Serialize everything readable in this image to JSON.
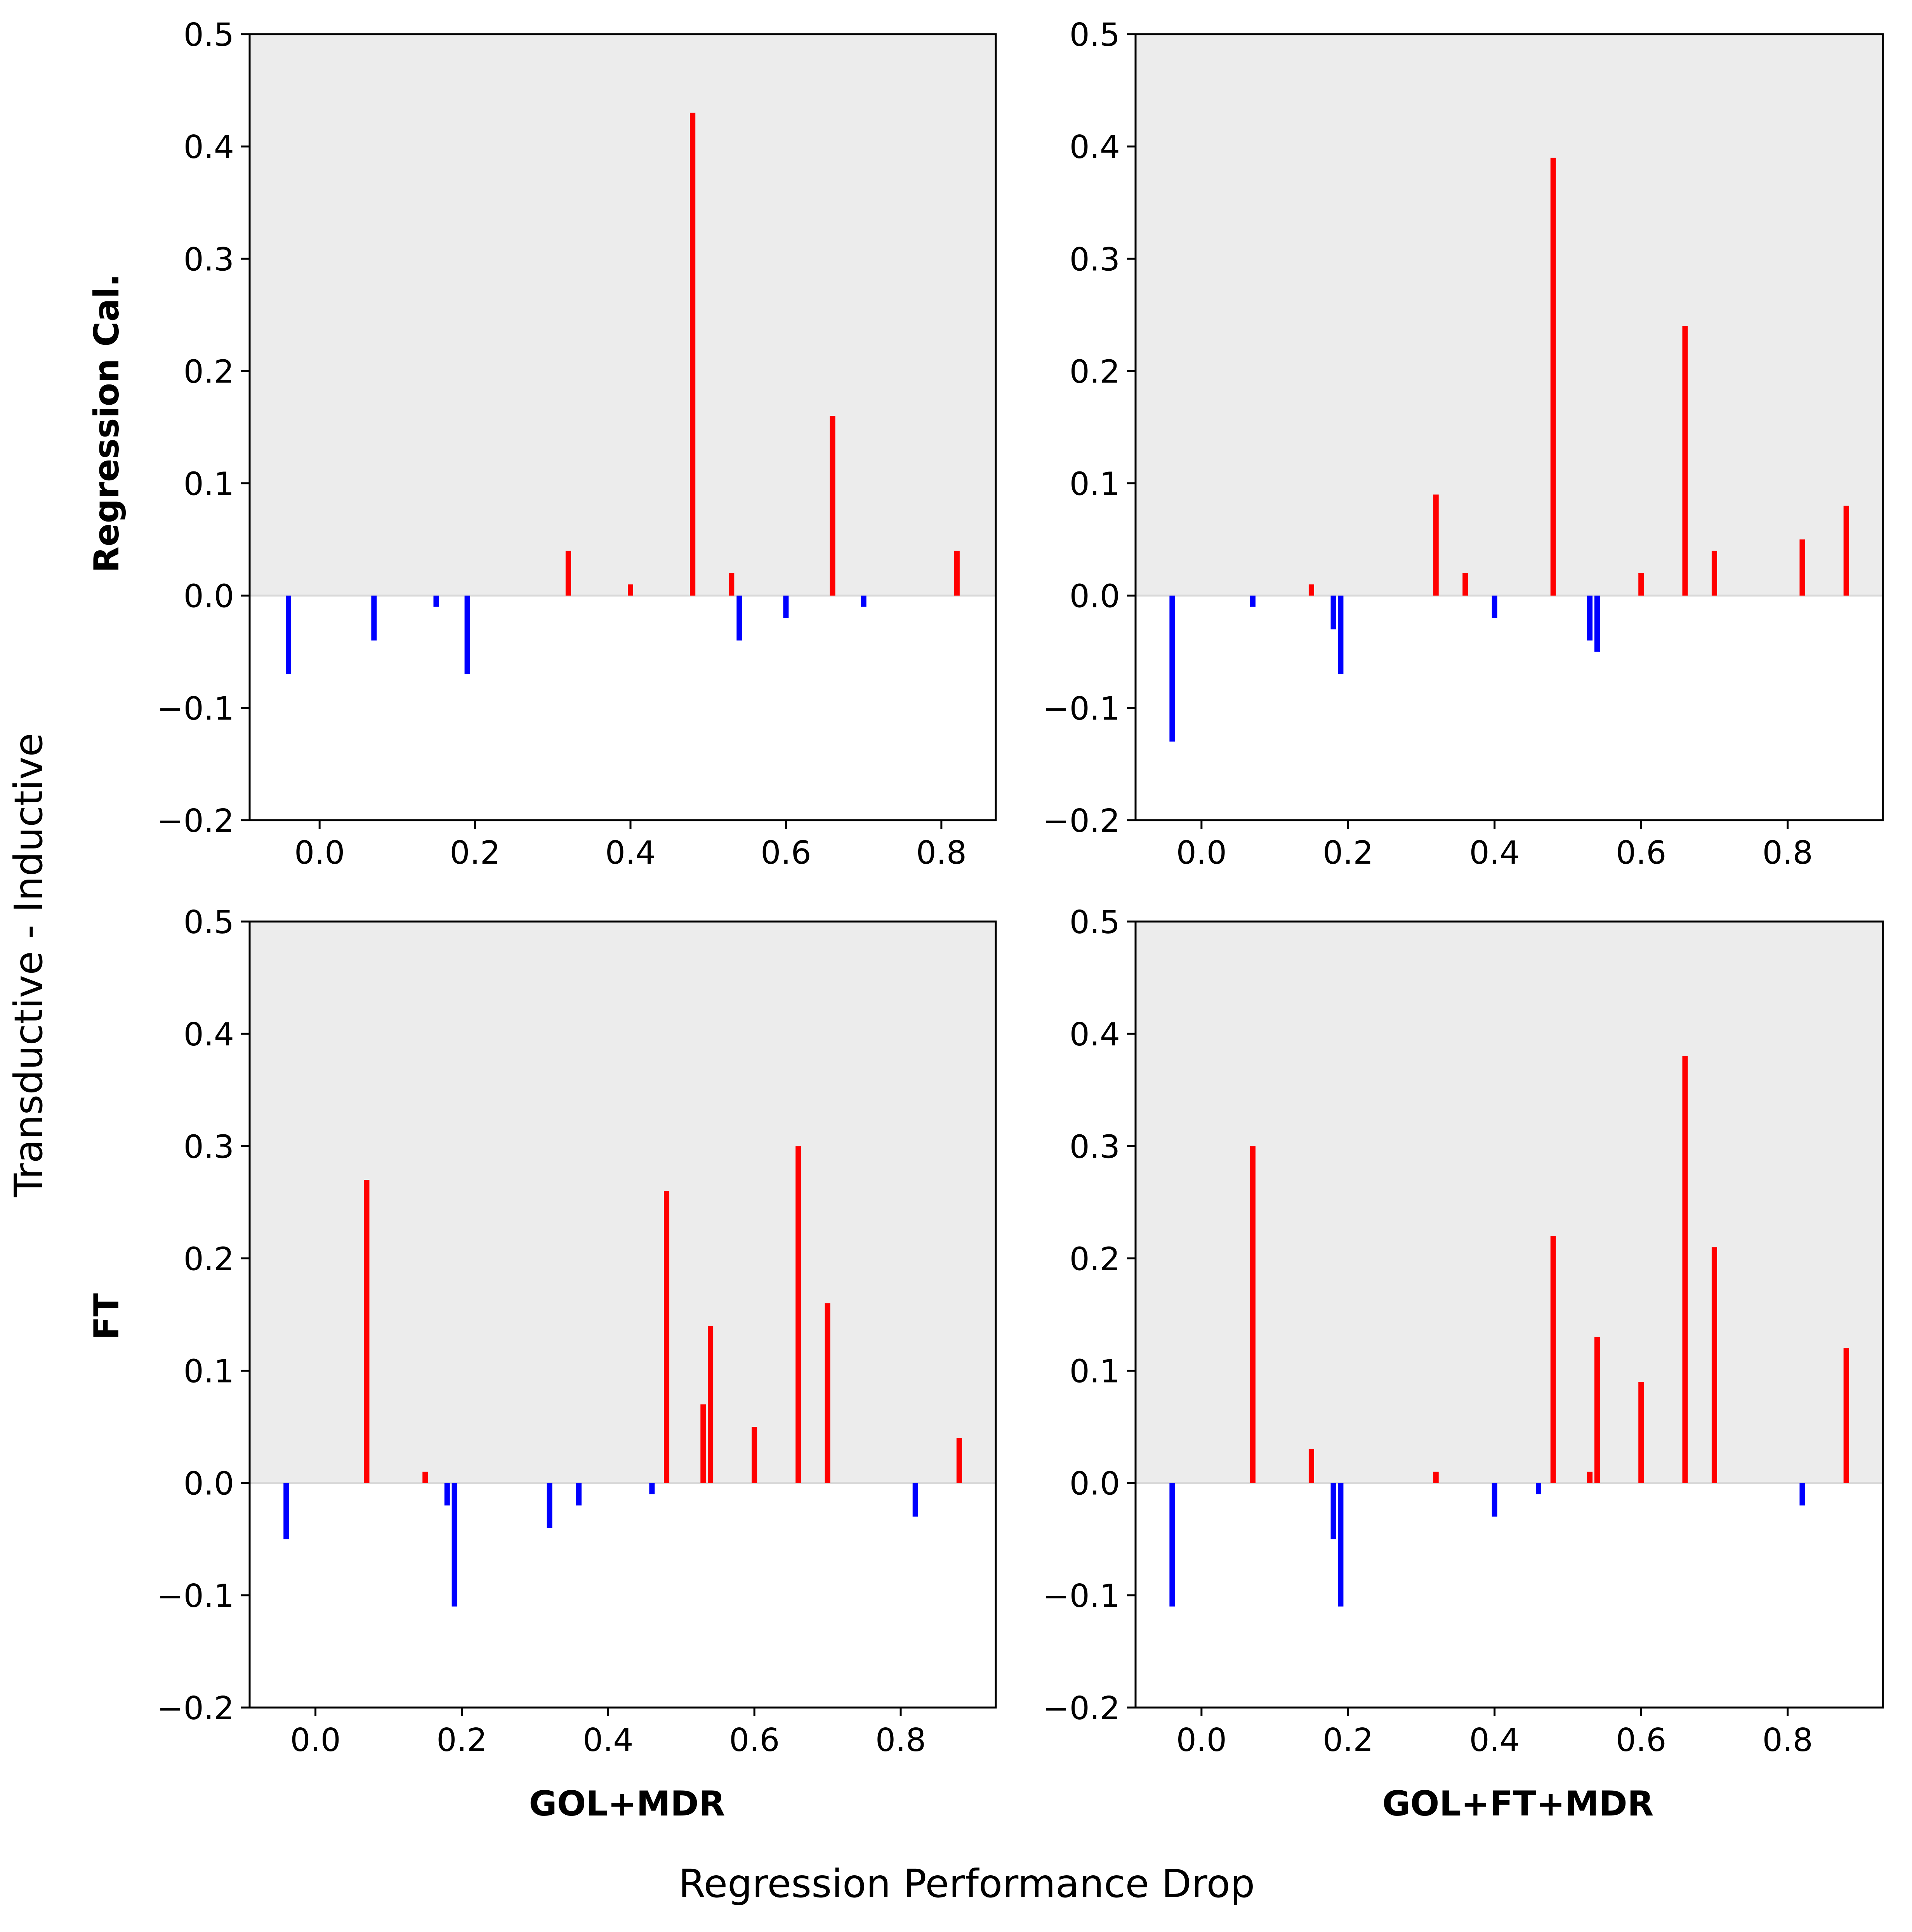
{
  "figure": {
    "ylabel": "Transductive - Inductive",
    "xlabel": "Regression Performance Drop",
    "row_labels": [
      "Regression Cal.",
      "FT"
    ],
    "col_labels": [
      "GOL+MDR",
      "GOL+FT+MDR"
    ]
  },
  "colors": {
    "positive": "#ff0000",
    "negative": "#0000ff",
    "shade": "#ececec",
    "axes": "#000000",
    "zero_line": "#d9d9d9"
  },
  "chart_data": [
    {
      "type": "bar",
      "row": "Regression Cal.",
      "column": "GOL+MDR",
      "xlim": [
        -0.09,
        0.87
      ],
      "ylim": [
        -0.2,
        0.5
      ],
      "xticks": [
        "0.0",
        "0.2",
        "0.4",
        "0.6",
        "0.8"
      ],
      "yticks": [
        "−0.2",
        "−0.1",
        "0.0",
        "0.1",
        "0.2",
        "0.3",
        "0.4",
        "0.5"
      ],
      "shaded_region": "y > 0",
      "x": [
        -0.04,
        0.07,
        0.15,
        0.19,
        0.32,
        0.4,
        0.48,
        0.53,
        0.54,
        0.6,
        0.66,
        0.7,
        0.82
      ],
      "values": [
        -0.07,
        -0.04,
        -0.01,
        -0.07,
        0.04,
        0.01,
        0.43,
        0.02,
        -0.04,
        -0.02,
        0.16,
        -0.01,
        0.04
      ]
    },
    {
      "type": "bar",
      "row": "Regression Cal.",
      "column": "GOL+FT+MDR",
      "xlim": [
        -0.09,
        0.93
      ],
      "ylim": [
        -0.2,
        0.5
      ],
      "xticks": [
        "0.0",
        "0.2",
        "0.4",
        "0.6",
        "0.8"
      ],
      "yticks": [
        "−0.2",
        "−0.1",
        "0.0",
        "0.1",
        "0.2",
        "0.3",
        "0.4",
        "0.5"
      ],
      "shaded_region": "y > 0",
      "x": [
        -0.04,
        0.07,
        0.15,
        0.18,
        0.19,
        0.32,
        0.36,
        0.4,
        0.48,
        0.53,
        0.54,
        0.6,
        0.66,
        0.7,
        0.82,
        0.88
      ],
      "values": [
        -0.13,
        -0.01,
        0.01,
        -0.03,
        -0.07,
        0.09,
        0.02,
        -0.02,
        0.39,
        -0.04,
        -0.05,
        0.02,
        0.24,
        0.04,
        0.05,
        0.08
      ]
    },
    {
      "type": "bar",
      "row": "FT",
      "column": "GOL+MDR",
      "xlim": [
        -0.09,
        0.93
      ],
      "ylim": [
        -0.2,
        0.5
      ],
      "xticks": [
        "0.0",
        "0.2",
        "0.4",
        "0.6",
        "0.8"
      ],
      "yticks": [
        "−0.2",
        "−0.1",
        "0.0",
        "0.1",
        "0.2",
        "0.3",
        "0.4",
        "0.5"
      ],
      "shaded_region": "y > 0",
      "x": [
        -0.04,
        0.07,
        0.15,
        0.18,
        0.19,
        0.32,
        0.36,
        0.46,
        0.48,
        0.53,
        0.54,
        0.6,
        0.66,
        0.7,
        0.82,
        0.88
      ],
      "values": [
        -0.05,
        0.27,
        0.01,
        -0.02,
        -0.11,
        -0.04,
        -0.02,
        -0.01,
        0.26,
        0.07,
        0.14,
        0.05,
        0.3,
        0.16,
        -0.03,
        0.04
      ]
    },
    {
      "type": "bar",
      "row": "FT",
      "column": "GOL+FT+MDR",
      "xlim": [
        -0.09,
        0.93
      ],
      "ylim": [
        -0.2,
        0.5
      ],
      "xticks": [
        "0.0",
        "0.2",
        "0.4",
        "0.6",
        "0.8"
      ],
      "yticks": [
        "−0.2",
        "−0.1",
        "0.0",
        "0.1",
        "0.2",
        "0.3",
        "0.4",
        "0.5"
      ],
      "shaded_region": "y > 0",
      "x": [
        -0.04,
        0.07,
        0.15,
        0.18,
        0.19,
        0.32,
        0.4,
        0.46,
        0.48,
        0.53,
        0.54,
        0.6,
        0.66,
        0.7,
        0.82,
        0.88
      ],
      "values": [
        -0.11,
        0.3,
        0.03,
        -0.05,
        -0.11,
        0.01,
        -0.03,
        -0.01,
        0.22,
        0.01,
        0.13,
        0.09,
        0.38,
        0.21,
        -0.02,
        0.12
      ]
    }
  ]
}
